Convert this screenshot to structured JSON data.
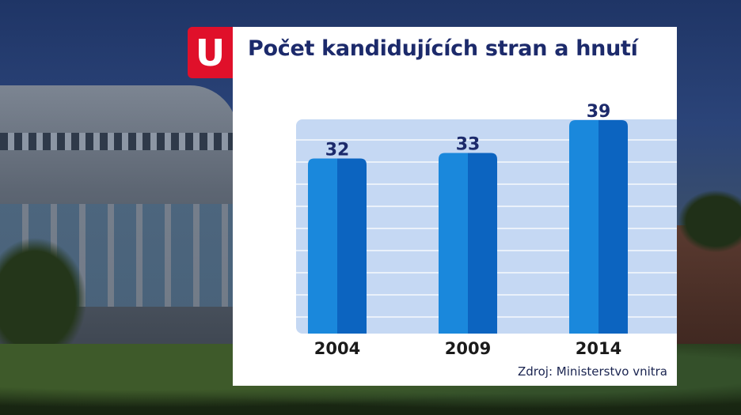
{
  "logo": {
    "letter": "U"
  },
  "chart": {
    "title": "Počet kandidujících stran a hnutí",
    "source": "Zdroj: Ministerstvo vnitra"
  },
  "colors": {
    "bar_light": "#1a88dc",
    "bar_dark": "#0c64c0",
    "plot_background": "#c5d8f3",
    "gridline": "#ffffff",
    "title": "#1c2a6b",
    "logo": "#e0102a"
  },
  "chart_data": {
    "type": "bar",
    "title": "Počet kandidujících stran a hnutí",
    "categories": [
      "2004",
      "2009",
      "2014"
    ],
    "values": [
      32,
      33,
      39
    ],
    "xlabel": "",
    "ylabel": "",
    "ylim": [
      0,
      40
    ],
    "grid": true,
    "data_labels": true
  }
}
